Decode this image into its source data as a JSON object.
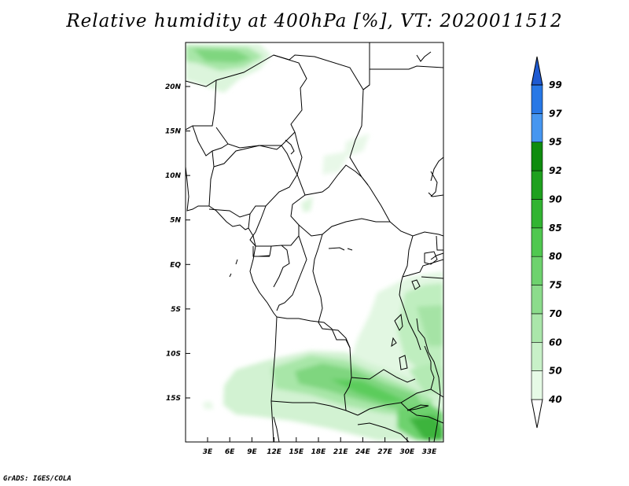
{
  "title": "Relative humidity at 400hPa [%], VT: 2020011512",
  "credit": "GrADS: IGES/COLA",
  "map": {
    "lat_labels": [
      "20N",
      "15N",
      "10N",
      "5N",
      "EQ",
      "5S",
      "10S",
      "15S"
    ],
    "lon_labels": [
      "3E",
      "6E",
      "9E",
      "12E",
      "15E",
      "18E",
      "21E",
      "24E",
      "27E",
      "30E",
      "33E"
    ]
  },
  "colorbar": {
    "levels": [
      "40",
      "50",
      "60",
      "70",
      "75",
      "80",
      "85",
      "90",
      "92",
      "95",
      "97",
      "99"
    ],
    "colors": [
      "#ffffff",
      "#e6fae6",
      "#c8f0c8",
      "#aae6aa",
      "#8cdc8c",
      "#6ed26e",
      "#50c850",
      "#32b432",
      "#1ea01e",
      "#0f8c0f",
      "#4696f0",
      "#2878e6",
      "#1e5ad2"
    ]
  },
  "chart_data": {
    "type": "heatmap",
    "title": "Relative humidity at 400hPa [%], VT: 2020011512",
    "variable": "Relative humidity at 400hPa",
    "units": "%",
    "valid_time": "2020011512",
    "lon_ticks": [
      "3E",
      "6E",
      "9E",
      "12E",
      "15E",
      "18E",
      "21E",
      "24E",
      "27E",
      "30E",
      "33E"
    ],
    "lat_ticks": [
      "20N",
      "15N",
      "10N",
      "5N",
      "EQ",
      "5S",
      "10S",
      "15S"
    ],
    "contour_levels": [
      40,
      50,
      60,
      70,
      75,
      80,
      85,
      90,
      92,
      95,
      97,
      99
    ]
  }
}
